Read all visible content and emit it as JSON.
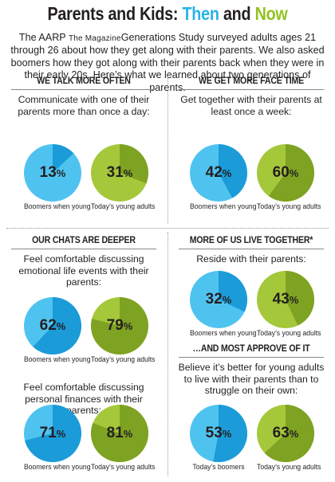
{
  "header": {
    "title_part1": "Parents and Kids: ",
    "title_then": "Then",
    "title_and": " and ",
    "title_now": "Now",
    "intro_part1": "The AARP ",
    "intro_magazine": "The Magazine",
    "intro_part2": "Generations Study surveyed adults ages 21 through 26 about how they get along with their parents. We also asked boomers how they got along with their parents back when they were in their early 20s. Here’s what we learned about two generations of parents."
  },
  "colors": {
    "boomers": "#4fc3f0",
    "young": "#a5c83a",
    "boomers_dark": "#1b9bd8",
    "young_dark": "#7ea222",
    "divider": "#9a9a9a"
  },
  "chart_data": [
    {
      "type": "pie",
      "section": "WE TALK MORE OFTEN",
      "caption": "Communicate with one of their parents more than once a day:",
      "series": [
        {
          "name": "Boomers when young",
          "value": 13
        },
        {
          "name": "Today’s young adults",
          "value": 31
        }
      ]
    },
    {
      "type": "pie",
      "section": "WE GET MORE FACE TIME",
      "caption": "Get together with their parents at least once a week:",
      "series": [
        {
          "name": "Boomers when young",
          "value": 42
        },
        {
          "name": "Today’s young adults",
          "value": 60
        }
      ]
    },
    {
      "type": "pie",
      "section": "OUR CHATS ARE DEEPER",
      "caption": "Feel comfortable discussing emotional life events with their parents:",
      "series": [
        {
          "name": "Boomers when young",
          "value": 62
        },
        {
          "name": "Today’s young adults",
          "value": 79
        }
      ]
    },
    {
      "type": "pie",
      "section": "MORE OF US LIVE TOGETHER*",
      "caption": "Reside with their parents:",
      "series": [
        {
          "name": "Boomers when young",
          "value": 32
        },
        {
          "name": "Today’s young adults",
          "value": 43
        }
      ]
    },
    {
      "type": "pie",
      "section": "",
      "caption": "Feel comfortable discussing personal finances with their parents:",
      "series": [
        {
          "name": "Boomers when young",
          "value": 71
        },
        {
          "name": "Today’s young adults",
          "value": 81
        }
      ]
    },
    {
      "type": "pie",
      "section": "…AND MOST APPROVE OF IT",
      "caption": "Believe it’s better for young adults to live with their parents than to struggle on their own:",
      "series": [
        {
          "name": "Today’s boomers",
          "value": 53
        },
        {
          "name": "Today’s young adults",
          "value": 63
        }
      ]
    }
  ]
}
